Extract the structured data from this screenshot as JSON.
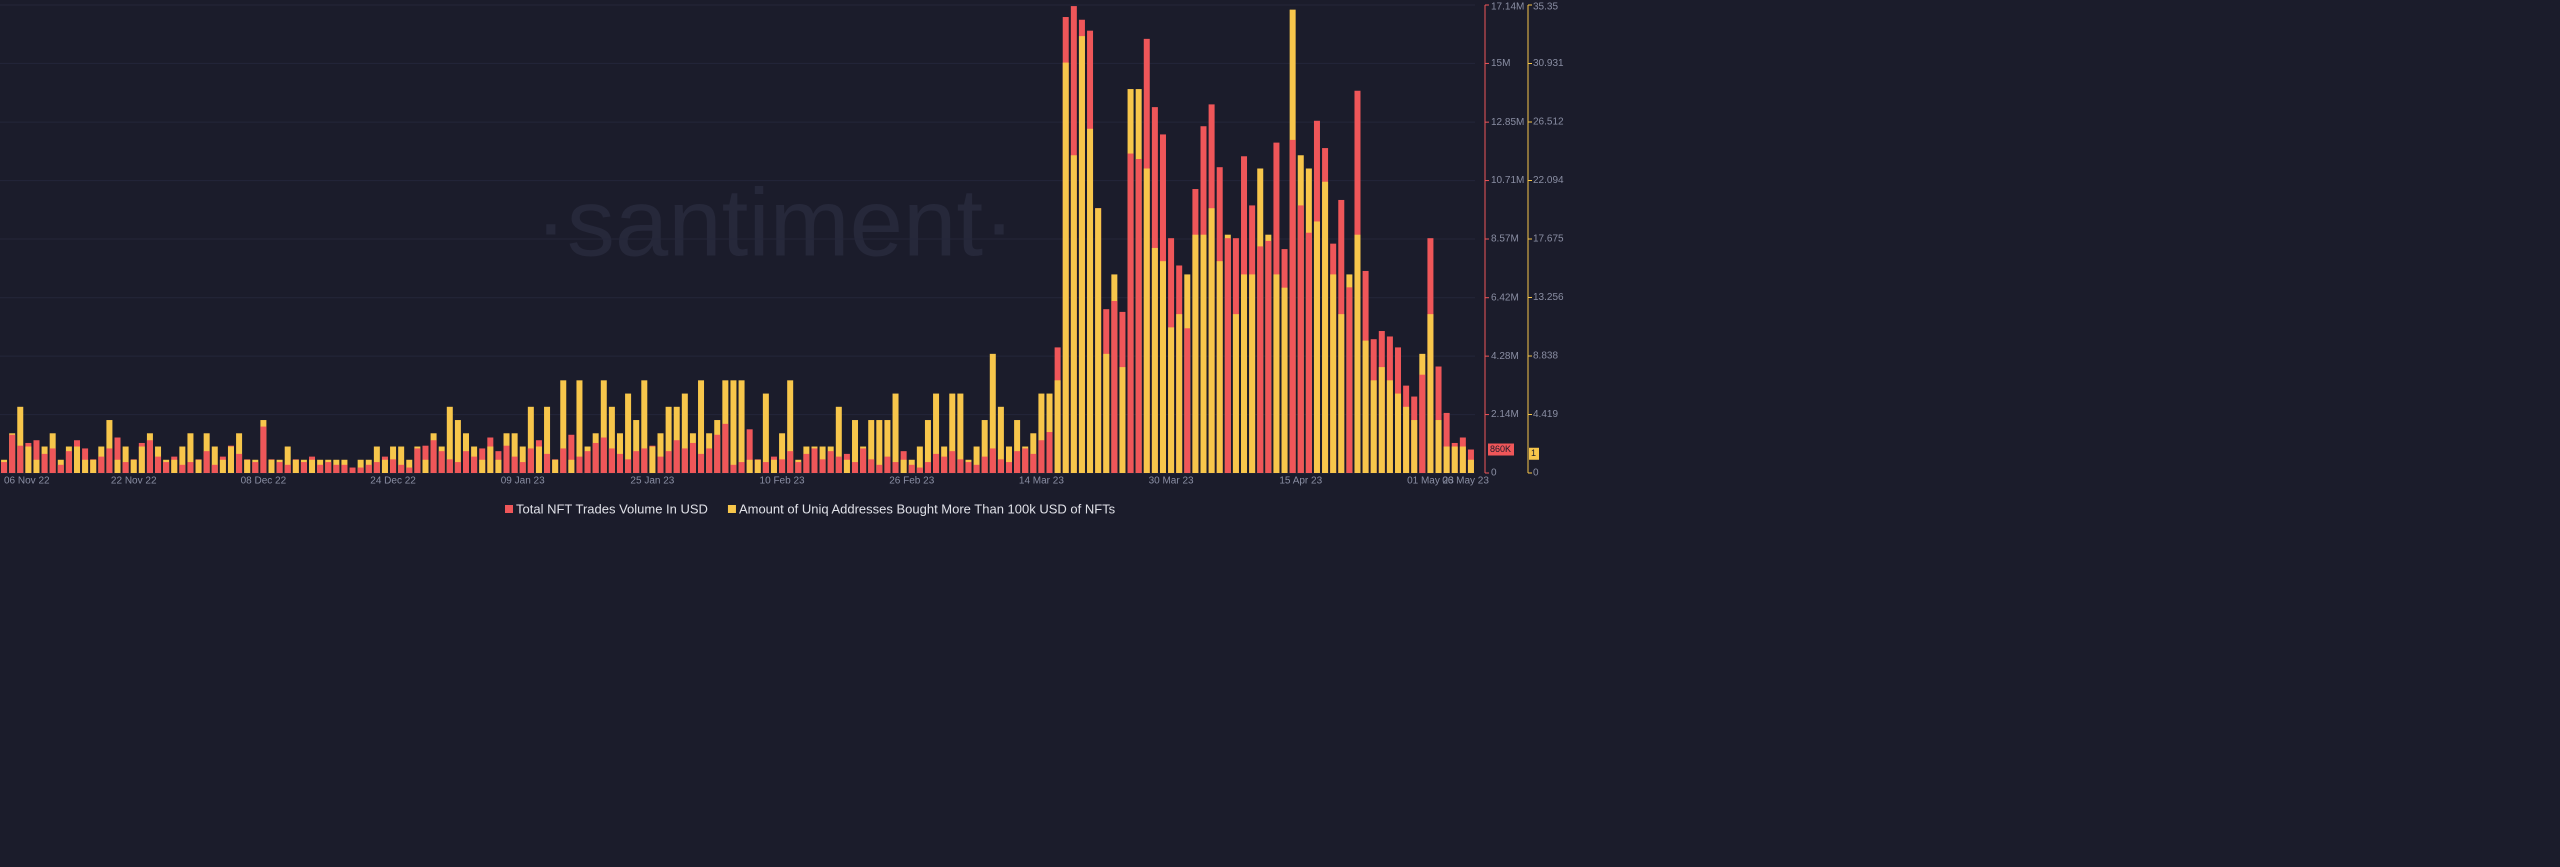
{
  "chart_data": {
    "type": "bar",
    "watermark": "·santiment·",
    "categories": [
      "06 Nov 22",
      null,
      null,
      null,
      null,
      null,
      null,
      null,
      null,
      null,
      null,
      null,
      null,
      null,
      null,
      null,
      "22 Nov 22",
      null,
      null,
      null,
      null,
      null,
      null,
      null,
      null,
      null,
      null,
      null,
      null,
      null,
      null,
      null,
      "08 Dec 22",
      null,
      null,
      null,
      null,
      null,
      null,
      null,
      null,
      null,
      null,
      null,
      null,
      null,
      null,
      null,
      "24 Dec 22",
      null,
      null,
      null,
      null,
      null,
      null,
      null,
      null,
      null,
      null,
      null,
      null,
      null,
      null,
      null,
      "09 Jan 23",
      null,
      null,
      null,
      null,
      null,
      null,
      null,
      null,
      null,
      null,
      null,
      null,
      null,
      null,
      null,
      "25 Jan 23",
      null,
      null,
      null,
      null,
      null,
      null,
      null,
      null,
      null,
      null,
      null,
      null,
      null,
      null,
      null,
      "10 Feb 23",
      null,
      null,
      null,
      null,
      null,
      null,
      null,
      null,
      null,
      null,
      null,
      null,
      null,
      null,
      null,
      "26 Feb 23",
      null,
      null,
      null,
      null,
      null,
      null,
      null,
      null,
      null,
      null,
      null,
      null,
      null,
      null,
      null,
      "14 Mar 23",
      null,
      null,
      null,
      null,
      null,
      null,
      null,
      null,
      null,
      null,
      null,
      null,
      null,
      null,
      null,
      "30 Mar 23",
      null,
      null,
      null,
      null,
      null,
      null,
      null,
      null,
      null,
      null,
      null,
      null,
      null,
      null,
      null,
      "15 Apr 23",
      null,
      null,
      null,
      null,
      null,
      null,
      null,
      null,
      null,
      null,
      null,
      null,
      null,
      null,
      null,
      "01 May 23",
      null,
      null,
      null,
      null,
      "06 May 23"
    ],
    "series": [
      {
        "name": "Total NFT Trades Volume In USD",
        "color": "#ef5659",
        "axis": "y",
        "last_label": "860K",
        "values": [
          400000,
          1400000,
          1000000,
          1100000,
          1200000,
          700000,
          900000,
          300000,
          800000,
          1200000,
          900000,
          500000,
          600000,
          900000,
          1300000,
          400000,
          500000,
          1100000,
          1200000,
          600000,
          400000,
          600000,
          300000,
          400000,
          500000,
          800000,
          300000,
          600000,
          1000000,
          700000,
          500000,
          400000,
          1700000,
          500000,
          400000,
          300000,
          500000,
          400000,
          600000,
          300000,
          400000,
          300000,
          300000,
          200000,
          200000,
          300000,
          400000,
          600000,
          500000,
          300000,
          200000,
          900000,
          1000000,
          1200000,
          800000,
          500000,
          400000,
          800000,
          600000,
          900000,
          1300000,
          800000,
          1000000,
          600000,
          400000,
          900000,
          1200000,
          700000,
          500000,
          900000,
          1400000,
          600000,
          800000,
          1100000,
          1300000,
          900000,
          700000,
          500000,
          800000,
          900000,
          1000000,
          600000,
          800000,
          1200000,
          900000,
          1100000,
          700000,
          900000,
          1400000,
          1800000,
          300000,
          400000,
          1600000,
          500000,
          400000,
          600000,
          500000,
          800000,
          400000,
          700000,
          900000,
          500000,
          800000,
          600000,
          700000,
          400000,
          900000,
          500000,
          300000,
          600000,
          400000,
          800000,
          300000,
          200000,
          400000,
          700000,
          600000,
          800000,
          500000,
          400000,
          300000,
          600000,
          900000,
          500000,
          400000,
          800000,
          900000,
          700000,
          1200000,
          1500000,
          4600000,
          16700000,
          17100000,
          16600000,
          16200000,
          9700000,
          6000000,
          6300000,
          5900000,
          11700000,
          11500000,
          15900000,
          13400000,
          12400000,
          8600000,
          7600000,
          5300000,
          10400000,
          12700000,
          13500000,
          11200000,
          8600000,
          8600000,
          11600000,
          9800000,
          8300000,
          8500000,
          12100000,
          8200000,
          12200000,
          9800000,
          8800000,
          12900000,
          11900000,
          8400000,
          10000000,
          6800000,
          14000000,
          7400000,
          4900000,
          5200000,
          5000000,
          4600000,
          3200000,
          2800000,
          3600000,
          8600000,
          3900000,
          2200000,
          1100000,
          1300000,
          860000
        ]
      },
      {
        "name": "Amount of Uniq Addresses Bought More Than 100k USD of NFTs",
        "color": "#f7c64b",
        "axis": "y2",
        "values": [
          1,
          3,
          5,
          2,
          1,
          2,
          3,
          1,
          2,
          2,
          1,
          1,
          2,
          4,
          1,
          2,
          1,
          2,
          3,
          2,
          1,
          1,
          2,
          3,
          1,
          3,
          2,
          1,
          2,
          3,
          1,
          1,
          4,
          1,
          1,
          2,
          1,
          1,
          1,
          1,
          1,
          1,
          1,
          0,
          1,
          1,
          2,
          1,
          2,
          2,
          1,
          2,
          1,
          3,
          2,
          5,
          4,
          3,
          2,
          1,
          2,
          1,
          3,
          3,
          2,
          5,
          2,
          5,
          1,
          7,
          1,
          7,
          2,
          3,
          7,
          5,
          3,
          6,
          4,
          7,
          2,
          3,
          5,
          5,
          6,
          3,
          7,
          3,
          4,
          7,
          7,
          7,
          1,
          1,
          6,
          1,
          3,
          7,
          1,
          2,
          2,
          2,
          2,
          5,
          1,
          4,
          2,
          4,
          4,
          4,
          6,
          1,
          1,
          2,
          4,
          6,
          2,
          6,
          6,
          1,
          2,
          4,
          9,
          5,
          2,
          4,
          2,
          3,
          6,
          6,
          7,
          31,
          24,
          33,
          26,
          20,
          9,
          15,
          8,
          29,
          29,
          23,
          17,
          16,
          11,
          12,
          15,
          18,
          18,
          20,
          16,
          18,
          12,
          15,
          15,
          23,
          18,
          15,
          14,
          35,
          24,
          23,
          19,
          22,
          15,
          12,
          15,
          18,
          10,
          7,
          8,
          7,
          6,
          5,
          4,
          9,
          12,
          4,
          2,
          2,
          2,
          1
        ]
      }
    ],
    "ylim": [
      0,
      17140000
    ],
    "yticks": [
      0,
      {
        "value": 2140000,
        "label": "2.14M"
      },
      {
        "value": 4280000,
        "label": "4.28M"
      },
      {
        "value": 6420000,
        "label": "6.42M"
      },
      {
        "value": 8570000,
        "label": "8.57M"
      },
      {
        "value": 10710000,
        "label": "10.71M"
      },
      {
        "value": 12850000,
        "label": "12.85M"
      },
      {
        "value": 15000000,
        "label": "15M"
      },
      {
        "value": 17140000,
        "label": "17.14M"
      }
    ],
    "y2lim": [
      0,
      35.35
    ],
    "y2ticks": [
      0,
      4.419,
      8.838,
      13.256,
      17.675,
      22.094,
      26.512,
      30.931,
      35.35
    ],
    "grid": true
  }
}
